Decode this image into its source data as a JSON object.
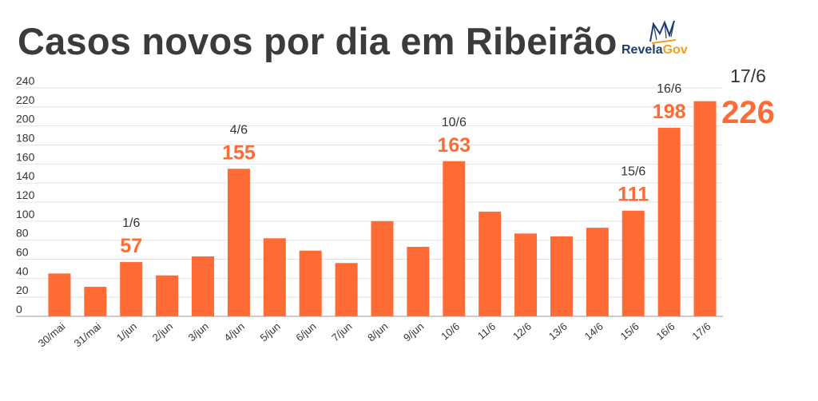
{
  "title": "Casos novos por dia em Ribeirão",
  "logo": {
    "text_part1": "Revela",
    "text_part2": "Gov"
  },
  "colors": {
    "bar": "#ff6b35",
    "title": "#3b3b3b",
    "label": "#333333",
    "grid": "#e2e2e2"
  },
  "chart_data": {
    "type": "bar",
    "title": "Casos novos por dia em Ribeirão",
    "xlabel": "",
    "ylabel": "",
    "ylim": [
      0,
      240
    ],
    "yticks": [
      0,
      20,
      40,
      60,
      80,
      100,
      120,
      140,
      160,
      180,
      200,
      220,
      240
    ],
    "grid": true,
    "categories": [
      "30/mai",
      "31/mai",
      "1/jun",
      "2/jun",
      "3/jun",
      "4/jun",
      "5/jun",
      "6/jun",
      "7/jun",
      "8/jun",
      "9/jun",
      "10/6",
      "11/6",
      "12/6",
      "13/6",
      "14/6",
      "15/6",
      "16/6",
      "17/6"
    ],
    "values": [
      45,
      31,
      57,
      43,
      63,
      155,
      82,
      69,
      56,
      100,
      73,
      163,
      110,
      87,
      84,
      93,
      111,
      198,
      226
    ],
    "annotations": [
      {
        "category": "1/jun",
        "date": "1/6",
        "value": "57"
      },
      {
        "category": "4/jun",
        "date": "4/6",
        "value": "155"
      },
      {
        "category": "10/6",
        "date": "10/6",
        "value": "163"
      },
      {
        "category": "15/6",
        "date": "15/6",
        "value": "111"
      },
      {
        "category": "16/6",
        "date": "16/6",
        "value": "198"
      },
      {
        "category": "17/6",
        "date": "17/6",
        "value": "226"
      }
    ]
  }
}
